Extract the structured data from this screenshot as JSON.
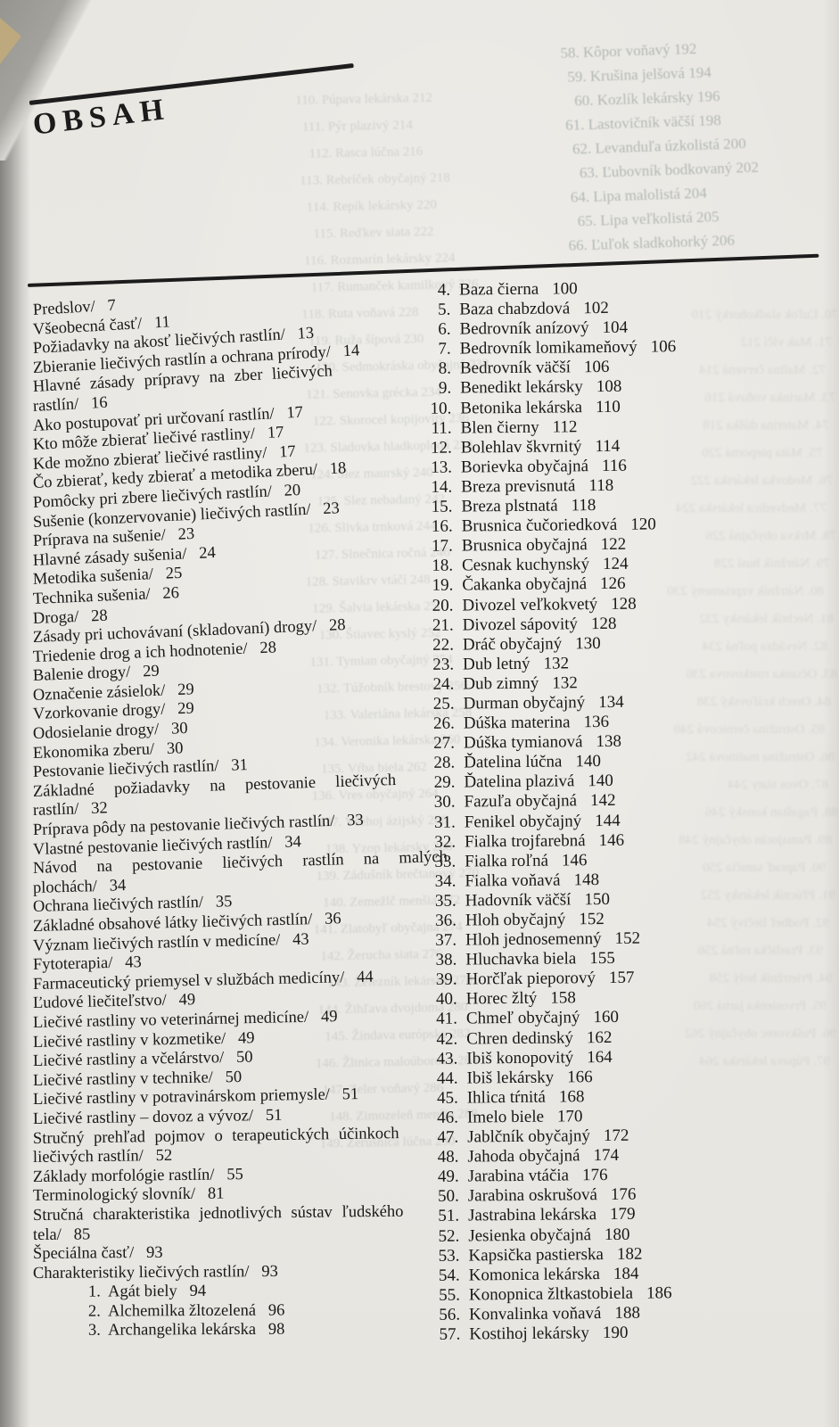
{
  "page": {
    "title": "OBSAH"
  },
  "colors": {
    "paper": "#e9e7e2",
    "ink": "#191919",
    "ghost": "#8f9a97",
    "edge": "#84837f",
    "corner_tan": "#c3ab79"
  },
  "left_column": {
    "lines": [
      {
        "t": "Predslov/   7"
      },
      {
        "t": "Všeobecná časť/   11"
      },
      {
        "t": "Požiadavky na akosť liečivých rastlín/   13"
      },
      {
        "t": "Zbieranie liečivých rastlín a ochrana prírody/   14"
      },
      {
        "t": "Hlavné zásady prípravy na zber liečivých",
        "sp": 1
      },
      {
        "t": "rastlín/   16"
      },
      {
        "t": "Ako postupovať pri určovaní rastlín/   17"
      },
      {
        "t": "Kto môže zbierať liečivé rastliny/   17"
      },
      {
        "t": "Kde možno zbierať liečivé rastliny/   17"
      },
      {
        "t": "Čo zbierať, kedy zbierať a metodika zberu/   18"
      },
      {
        "t": "Pomôcky pri zbere liečivých rastlín/   20"
      },
      {
        "t": "Sušenie (konzervovanie) liečivých rastlín/   23"
      },
      {
        "t": "Príprava na sušenie/   23"
      },
      {
        "t": "Hlavné zásady sušenia/   24"
      },
      {
        "t": "Metodika sušenia/   25"
      },
      {
        "t": "Technika sušenia/   26"
      },
      {
        "t": "Droga/   28"
      },
      {
        "t": "Zásady pri uchovávaní (skladovaní) drogy/   28"
      },
      {
        "t": "Triedenie drog a ich hodnotenie/   28"
      },
      {
        "t": "Balenie drogy/   29"
      },
      {
        "t": "Označenie zásielok/   29"
      },
      {
        "t": "Vzorkovanie drogy/   29"
      },
      {
        "t": "Odosielanie drogy/   30"
      },
      {
        "t": "Ekonomika zberu/   30"
      },
      {
        "t": "Pestovanie liečivých rastlín/   31"
      },
      {
        "t": "Základné požiadavky na pestovanie liečivých",
        "sp": 2
      },
      {
        "t": "rastlín/   32"
      },
      {
        "t": "Príprava pôdy na pestovanie liečivých rastlín/   33"
      },
      {
        "t": "Vlastné pestovanie liečivých rastlín/   34"
      },
      {
        "t": "Návod na pestovanie liečivých rastlín na malých",
        "sp": 2
      },
      {
        "t": "plochách/   34"
      },
      {
        "t": "Ochrana liečivých rastlín/   35"
      },
      {
        "t": "Základné obsahové látky liečivých rastlín/   36"
      },
      {
        "t": "Význam liečivých rastlín v medicíne/   43"
      },
      {
        "t": "Fytoterapia/   43"
      },
      {
        "t": "Farmaceutický priemysel v službách medicíny/   44"
      },
      {
        "t": "Ľudové liečiteľstvo/   49"
      },
      {
        "t": "Liečivé rastliny vo veterinárnej medicíne/   49"
      },
      {
        "t": "Liečivé rastliny v kozmetike/   49"
      },
      {
        "t": "Liečivé rastliny a včelárstvo/   50"
      },
      {
        "t": "Liečivé rastliny v technike/   50"
      },
      {
        "t": "Liečivé rastliny v potravinárskom priemysle/   51"
      },
      {
        "t": "Liečivé rastliny – dovoz a vývoz/   51"
      },
      {
        "t": "Stručný prehľad pojmov o terapeutických účinkoch",
        "sp": 1
      },
      {
        "t": "liečivých rastlín/   52"
      },
      {
        "t": "Základy morfológie rastlín/   55"
      },
      {
        "t": "Terminologický slovník/   81"
      },
      {
        "t": "Stručná charakteristika jednotlivých sústav ľudského",
        "sp": 1
      },
      {
        "t": "tela/   85"
      },
      {
        "t": "Špeciálna časť/   93"
      },
      {
        "t": "Charakteristiky liečivých rastlín/   93"
      },
      {
        "t": "1.  Agát biely   94",
        "ind": 1
      },
      {
        "t": "2.  Alchemilka žltozelená   96",
        "ind": 1
      },
      {
        "t": "3.  Archangelika lekárska   98",
        "ind": 1
      }
    ]
  },
  "right_column": {
    "items": [
      {
        "n": "4.",
        "name": "Baza čierna",
        "page": "100"
      },
      {
        "n": "5.",
        "name": "Baza chabzdová",
        "page": "102"
      },
      {
        "n": "6.",
        "name": "Bedrovník anízový",
        "page": "104"
      },
      {
        "n": "7.",
        "name": "Bedrovník lomikameňový",
        "page": "106"
      },
      {
        "n": "8.",
        "name": "Bedrovník väčší",
        "page": "106"
      },
      {
        "n": "9.",
        "name": "Benedikt lekársky",
        "page": "108"
      },
      {
        "n": "10.",
        "name": "Betonika lekárska",
        "page": "110"
      },
      {
        "n": "11.",
        "name": "Blen čierny",
        "page": "112"
      },
      {
        "n": "12.",
        "name": "Bolehlav škvrnitý",
        "page": "114"
      },
      {
        "n": "13.",
        "name": "Borievka obyčajná",
        "page": "116"
      },
      {
        "n": "14.",
        "name": "Breza previsnutá",
        "page": "118"
      },
      {
        "n": "15.",
        "name": "Breza plstnatá",
        "page": "118"
      },
      {
        "n": "16.",
        "name": "Brusnica čučoriedková",
        "page": "120"
      },
      {
        "n": "17.",
        "name": "Brusnica obyčajná",
        "page": "122"
      },
      {
        "n": "18.",
        "name": "Cesnak kuchynský",
        "page": "124"
      },
      {
        "n": "19.",
        "name": "Čakanka obyčajná",
        "page": "126"
      },
      {
        "n": "20.",
        "name": "Divozel veľkokvetý",
        "page": "128"
      },
      {
        "n": "21.",
        "name": "Divozel sápovitý",
        "page": "128"
      },
      {
        "n": "22.",
        "name": "Dráč obyčajný",
        "page": "130"
      },
      {
        "n": "23.",
        "name": "Dub letný",
        "page": "132"
      },
      {
        "n": "24.",
        "name": "Dub zimný",
        "page": "132"
      },
      {
        "n": "25.",
        "name": "Durman obyčajný",
        "page": "134"
      },
      {
        "n": "26.",
        "name": "Dúška materina",
        "page": "136"
      },
      {
        "n": "27.",
        "name": "Dúška tymianová",
        "page": "138"
      },
      {
        "n": "28.",
        "name": "Ďatelina lúčna",
        "page": "140"
      },
      {
        "n": "29.",
        "name": "Ďatelina plazivá",
        "page": "140"
      },
      {
        "n": "30.",
        "name": "Fazuľa obyčajná",
        "page": "142"
      },
      {
        "n": "31.",
        "name": "Fenikel obyčajný",
        "page": "144"
      },
      {
        "n": "32.",
        "name": "Fialka trojfarebná",
        "page": "146"
      },
      {
        "n": "33.",
        "name": "Fialka roľná",
        "page": "146"
      },
      {
        "n": "34.",
        "name": "Fialka voňavá",
        "page": "148"
      },
      {
        "n": "35.",
        "name": "Hadovník väčší",
        "page": "150"
      },
      {
        "n": "36.",
        "name": "Hloh obyčajný",
        "page": "152"
      },
      {
        "n": "37.",
        "name": "Hloh jednosemenný",
        "page": "152"
      },
      {
        "n": "38.",
        "name": "Hluchavka biela",
        "page": "155"
      },
      {
        "n": "39.",
        "name": "Horčľak pieporový",
        "page": "157"
      },
      {
        "n": "40.",
        "name": "Horec žltý",
        "page": "158"
      },
      {
        "n": "41.",
        "name": "Chmeľ obyčajný",
        "page": "160"
      },
      {
        "n": "42.",
        "name": "Chren dedinský",
        "page": "162"
      },
      {
        "n": "43.",
        "name": "Ibiš konopovitý",
        "page": "164"
      },
      {
        "n": "44.",
        "name": "Ibiš lekársky",
        "page": "166"
      },
      {
        "n": "45.",
        "name": "Ihlica tŕnitá",
        "page": "168"
      },
      {
        "n": "46.",
        "name": "Imelo biele",
        "page": "170"
      },
      {
        "n": "47.",
        "name": "Jablčník obyčajný",
        "page": "172"
      },
      {
        "n": "48.",
        "name": "Jahoda obyčajná",
        "page": "174"
      },
      {
        "n": "49.",
        "name": "Jarabina vtáčia",
        "page": "176"
      },
      {
        "n": "50.",
        "name": "Jarabina oskrušová",
        "page": "176"
      },
      {
        "n": "51.",
        "name": "Jastrabina lekárska",
        "page": "179"
      },
      {
        "n": "52.",
        "name": "Jesienka obyčajná",
        "page": "180"
      },
      {
        "n": "53.",
        "name": "Kapsička pastierska",
        "page": "182"
      },
      {
        "n": "54.",
        "name": "Komonica lekárska",
        "page": "184"
      },
      {
        "n": "55.",
        "name": "Konopnica žltkastobiela",
        "page": "186"
      },
      {
        "n": "56.",
        "name": "Konvalinka voňavá",
        "page": "188"
      },
      {
        "n": "57.",
        "name": "Kostihoj lekársky",
        "page": "190"
      }
    ]
  },
  "ghosts": {
    "top_right": [
      "58. Kôpor voňavý   192",
      "59. Krušina jelšová   194",
      "60. Kozlík lekársky   196",
      "61. Lastovičník väčší   198",
      "62. Levanduľa úzkolistá   200",
      "63. Ľubovník bodkovaný   202",
      "64. Lipa malolistá   204",
      "65. Lipa veľkolistá   205",
      "66. Ľuľok sladkohorký   206"
    ],
    "middle": [
      "110. Púpava lekárska   212",
      "111. Pýr plazivý   214",
      "112. Rasca lúčna   216",
      "113. Rebríček obyčajný   218",
      "114. Repík lekársky   220",
      "115. Reďkev siata   222",
      "116. Rozmarín lekársky   224",
      "117. Rumanček kamilkový   226",
      "118. Ruta voňavá   228",
      "119. Ruža šípová   230",
      "120. Sedmokráska obyčajná   232",
      "121. Senovka grécka   234",
      "122. Skorocel kopijovitý   236",
      "123. Sladovka hladkoplodá   238",
      "124. Slez maurský   240",
      "125. Slez nebadaný   242",
      "126. Slivka trnková   244",
      "127. Slnečnica ročná   246",
      "128. Stavikrv vtáčí   248",
      "129. Šalvia lekárska   250",
      "130. Štiavec kyslý   252",
      "131. Tymian obyčajný   254",
      "132. Túžobník brestový   256",
      "133. Valeriána lekárska   258",
      "134. Veronika lekárska   260",
      "135. Vŕba biela   262",
      "136. Vres obyčajný   264",
      "137. Všehoj ázijský   266",
      "138. Yzop lekársky   268",
      "139. Zádušník brečtanový   270",
      "140. Zemežlč menšia   272",
      "141. Zlatobyľ obyčajná   274",
      "142. Žerucha siata   276",
      "143. Železník lekársky   278",
      "144. Žihľava dvojdomá   280",
      "145. Žindava európska   282",
      "146. Žltnica maloúborová   284",
      "147. Zeler voňavý   286",
      "148. Zimozeleň menšia   288",
      "149. Žerušnica lúčna   290"
    ],
    "right_margin": [
      "70. Ľuľok sladkohorký   210",
      "71. Mak vlčí   212",
      "72. Malina červená   214",
      "73. Marinka voňavá   216",
      "74. Materina dúška   218",
      "75. Mäta pieporná   220",
      "76. Medovka lekárska   222",
      "77. Medvedica lekárska   224",
      "78. Mrkva obyčajná   226",
      "79. Nátržník husí   228",
      "80. Nátržník vzpriamený   230",
      "81. Nechtík lekársky   232",
      "82. Nevädza poľná   234",
      "83. Očianka rostkovova   236",
      "84. Orech kráľovský   238",
      "85. Ostružina černicová   240",
      "86. Ostružina malinová   242",
      "87. Ovos siaty   244",
      "88. Pagaštan konský   246",
      "89. Pamajorán obyčajný   248",
      "90. Papraď samčia   250",
      "91. Pľúcnik lekársky   252",
      "92. Podbeľ liečivý   254",
      "93. Praslička roľná   256",
      "94. Prietržník holý   258",
      "95. Prvosienka jarná   260",
      "96. Puškvorec obyčajný   262",
      "97. Púpava lekárska   264"
    ]
  }
}
